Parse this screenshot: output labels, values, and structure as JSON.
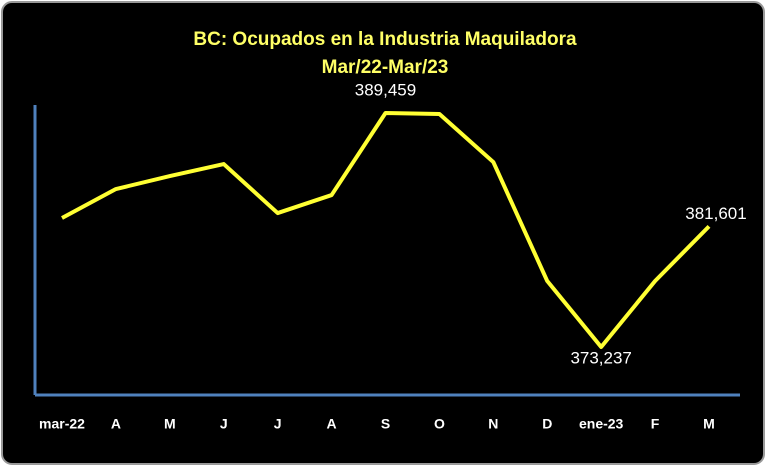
{
  "chart_data": {
    "type": "line",
    "title": "BC: Ocupados en la Industria Maquiladora",
    "subtitle": "Mar/22-Mar/23",
    "categories": [
      "mar-22",
      "A",
      "M",
      "J",
      "J",
      "A",
      "S",
      "O",
      "N",
      "D",
      "ene-23",
      "F",
      "M"
    ],
    "values": [
      382177,
      384187,
      385087,
      385919,
      382523,
      383771,
      389459,
      389390,
      386058,
      377811,
      373237,
      377811,
      381601
    ],
    "value_labels": [
      null,
      null,
      null,
      null,
      null,
      null,
      "389,459",
      null,
      null,
      null,
      "373,237",
      null,
      "381,601"
    ],
    "color": "#ffff33",
    "axis_color": "#4f81bd"
  }
}
